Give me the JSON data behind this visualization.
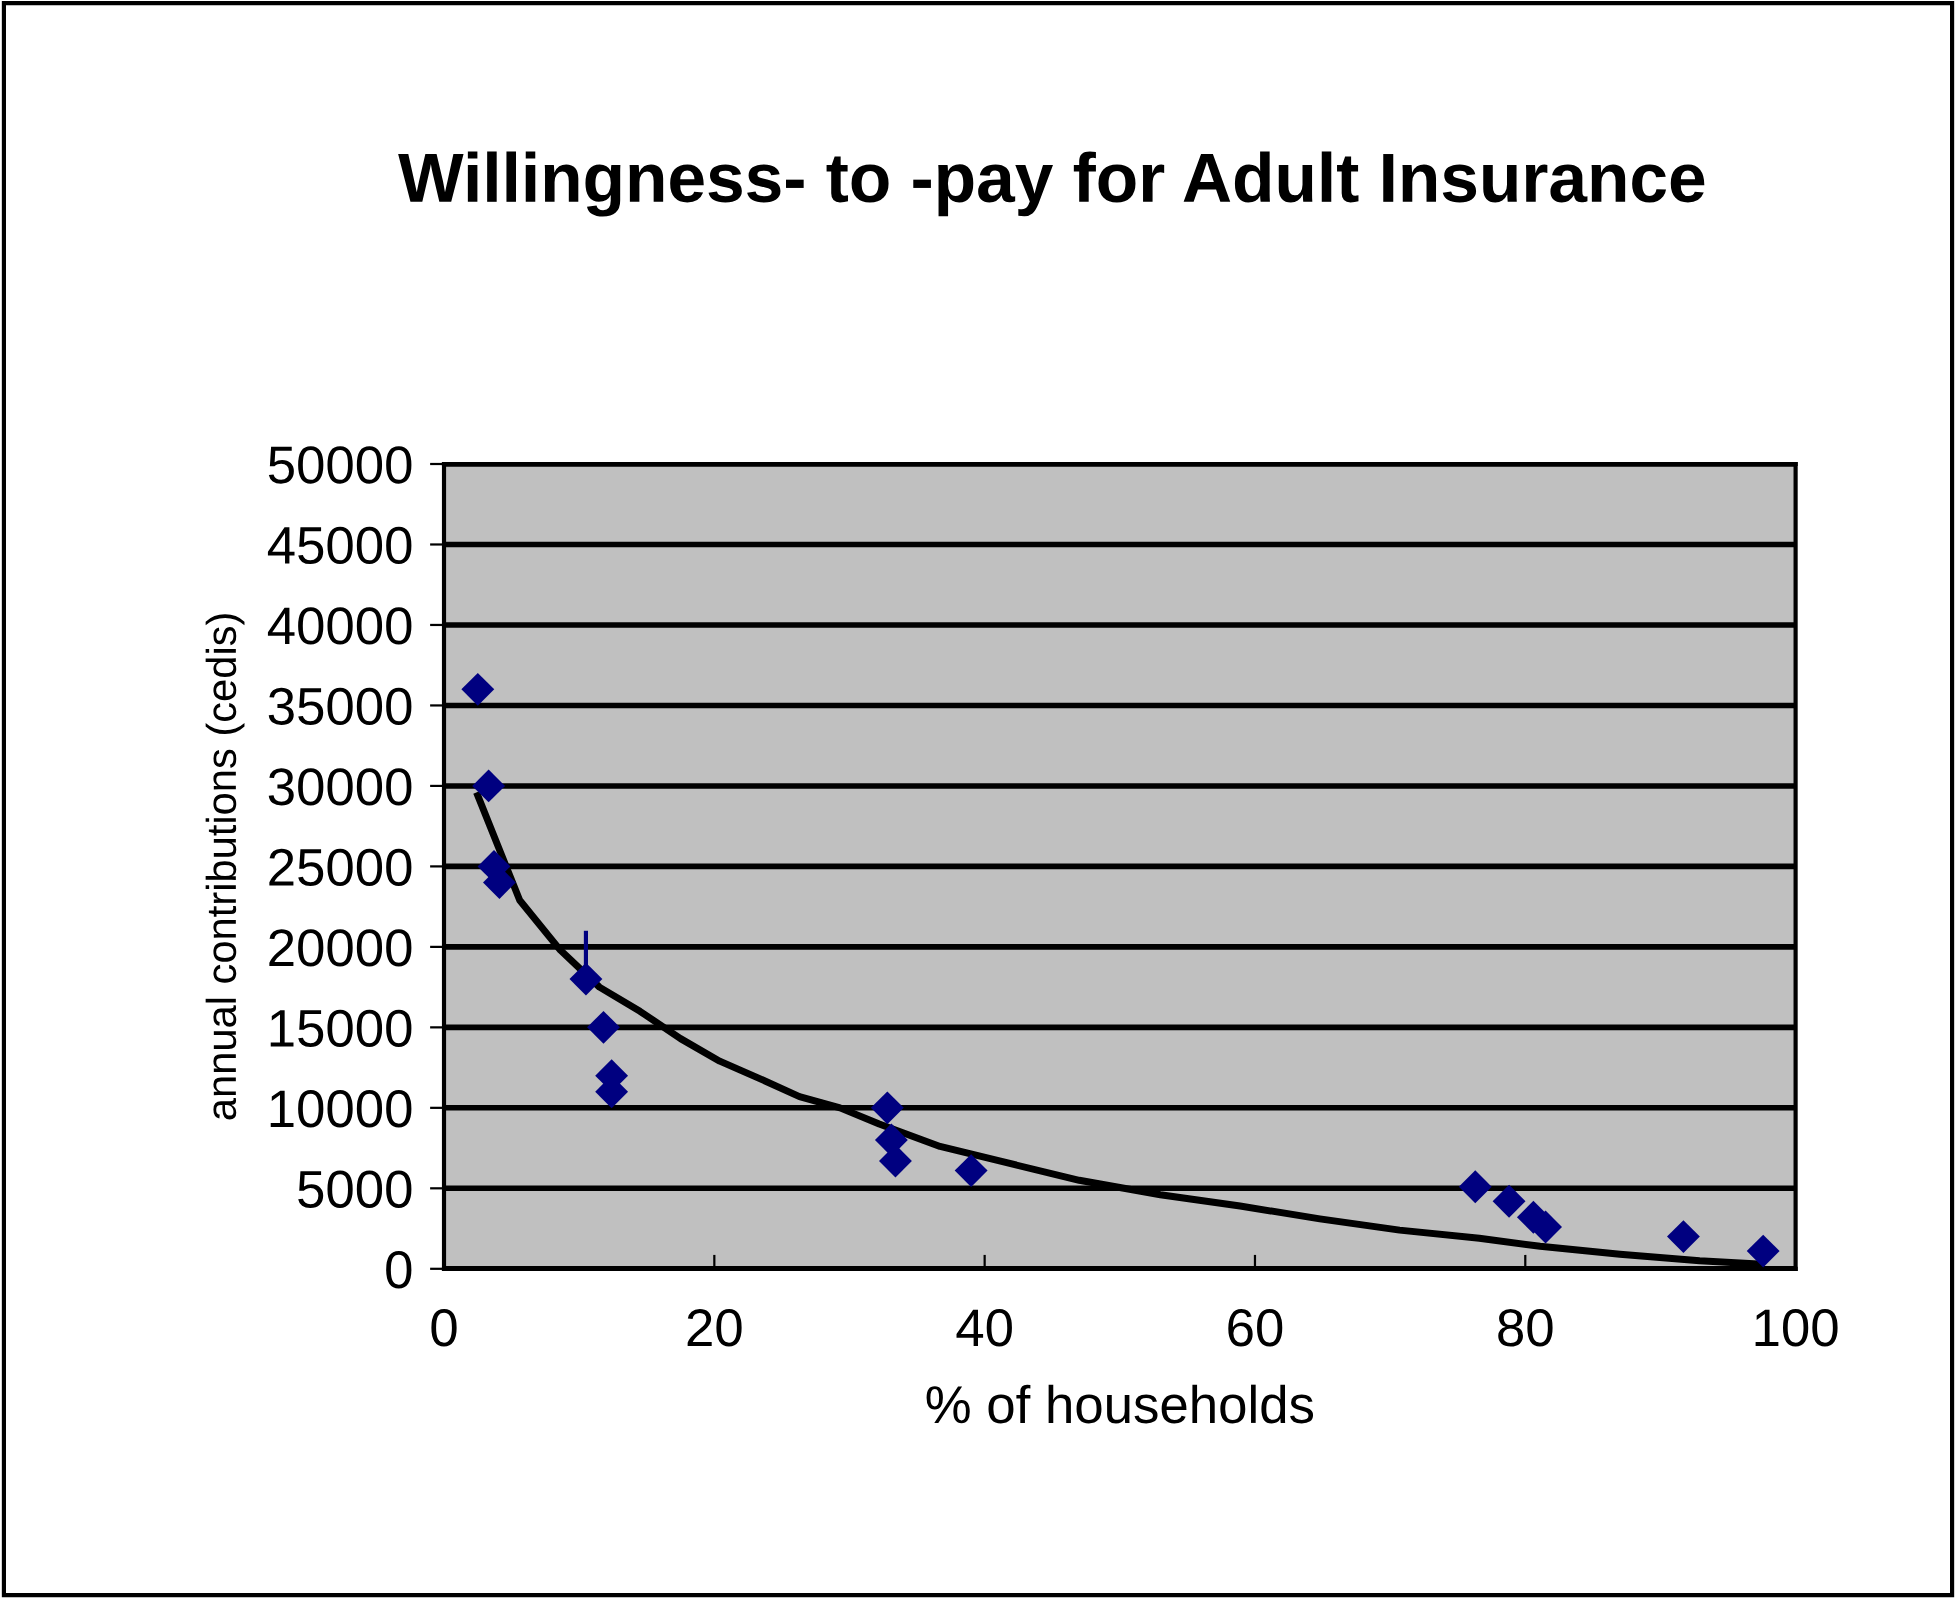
{
  "chart_data": {
    "type": "scatter",
    "title": "Willingness- to -pay for Adult Insurance",
    "xlabel": "% of households",
    "ylabel": "annual contributions (cedis)",
    "xlim": [
      0,
      100
    ],
    "xticks": [
      0,
      20,
      40,
      60,
      80,
      100
    ],
    "ylim": [
      0,
      50000
    ],
    "yticks": [
      0,
      5000,
      10000,
      15000,
      20000,
      25000,
      30000,
      35000,
      40000,
      45000,
      50000
    ],
    "grid": "y",
    "legend": false,
    "series": [
      {
        "marker": "diamond",
        "color": "#000080",
        "x": [
          2.5,
          3.3,
          3.7,
          4.1,
          10.5,
          11.8,
          12.4,
          12.4,
          32.8,
          33.1,
          33.4,
          39.0,
          76.3,
          78.8,
          80.6,
          81.5,
          91.7,
          97.6
        ],
        "values": [
          36000,
          30000,
          25000,
          24000,
          18000,
          15000,
          12000,
          11000,
          10000,
          8000,
          6700,
          6100,
          5100,
          4200,
          3200,
          2600,
          2000,
          1100
        ],
        "errors": [
          null,
          null,
          null,
          null,
          [
            18000,
            21000
          ],
          null,
          null,
          null,
          null,
          null,
          null,
          null,
          null,
          null,
          null,
          null,
          null,
          null
        ]
      },
      {
        "type": "line",
        "color": "#000000",
        "marker": "none",
        "line_style": "solid",
        "x": [
          2.5,
          5.6,
          8.6,
          11.5,
          14.5,
          17.5,
          20.4,
          23.4,
          26.3,
          29.3,
          32.2,
          36.7,
          41.1,
          47,
          53,
          58.9,
          64.8,
          70.7,
          76.6,
          81.1,
          87,
          92.9,
          97.3
        ],
        "values": [
          29400,
          22900,
          19800,
          17500,
          16000,
          14300,
          12900,
          11800,
          10700,
          10000,
          9000,
          7600,
          6700,
          5500,
          4600,
          3900,
          3100,
          2400,
          1900,
          1400,
          900,
          500,
          300
        ]
      }
    ]
  }
}
